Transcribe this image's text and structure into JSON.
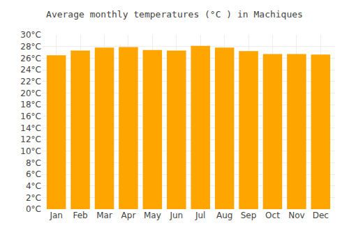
{
  "chart_data": {
    "type": "bar",
    "title": "Average monthly temperatures (°C ) in Machiques",
    "categories": [
      "Jan",
      "Feb",
      "Mar",
      "Apr",
      "May",
      "Jun",
      "Jul",
      "Aug",
      "Sep",
      "Oct",
      "Nov",
      "Dec"
    ],
    "values": [
      26.5,
      27.3,
      27.8,
      27.9,
      27.4,
      27.3,
      28.1,
      27.8,
      27.2,
      26.7,
      26.7,
      26.6
    ],
    "color": "#FFA500",
    "ylim": [
      0,
      30
    ],
    "yticks": [
      {
        "value": 0,
        "label": "0°C"
      },
      {
        "value": 2,
        "label": "2°C"
      },
      {
        "value": 4,
        "label": "4°C"
      },
      {
        "value": 6,
        "label": "6°C"
      },
      {
        "value": 8,
        "label": "8°C"
      },
      {
        "value": 10,
        "label": "10°C"
      },
      {
        "value": 12,
        "label": "12°C"
      },
      {
        "value": 14,
        "label": "14°C"
      },
      {
        "value": 16,
        "label": "16°C"
      },
      {
        "value": 18,
        "label": "18°C"
      },
      {
        "value": 20,
        "label": "20°C"
      },
      {
        "value": 22,
        "label": "22°C"
      },
      {
        "value": 24,
        "label": "24°C"
      },
      {
        "value": 26,
        "label": "26°C"
      },
      {
        "value": 28,
        "label": "28°C"
      },
      {
        "value": 30,
        "label": "30°C"
      }
    ],
    "grid": true
  }
}
